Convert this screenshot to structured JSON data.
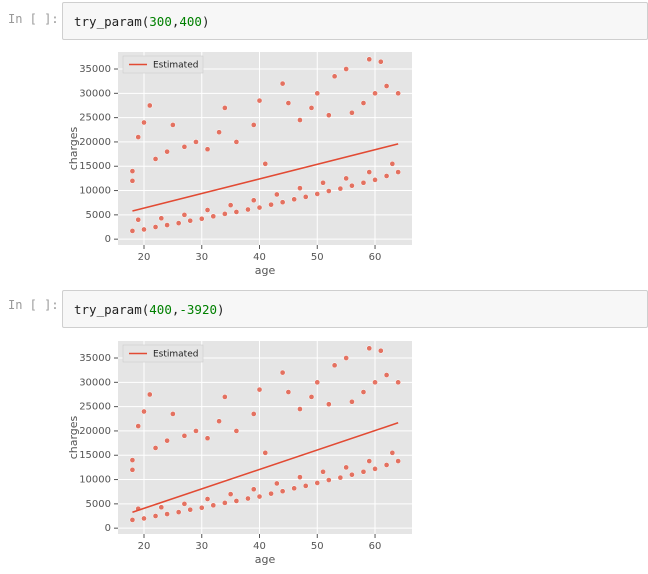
{
  "cells": [
    {
      "prompt": "In [ ]:",
      "code": [
        "try_param(",
        "300",
        ",",
        "400",
        ")"
      ]
    },
    {
      "prompt": "In [ ]:",
      "code": [
        "try_param(",
        "400",
        ",",
        "-3920",
        ")"
      ]
    }
  ],
  "chart_data": [
    {
      "type": "scatter",
      "xlabel": "age",
      "ylabel": "charges",
      "xlim": [
        15.5,
        66.4
      ],
      "ylim": [
        -1200,
        38500
      ],
      "xticks": [
        20,
        30,
        40,
        50,
        60
      ],
      "yticks": [
        0,
        5000,
        10000,
        15000,
        20000,
        25000,
        30000,
        35000
      ],
      "grid": true,
      "legend": "upper left",
      "points": {
        "color": "#e24a33",
        "x": [
          18,
          20,
          22,
          24,
          26,
          28,
          30,
          32,
          34,
          36,
          38,
          40,
          42,
          44,
          46,
          48,
          50,
          52,
          54,
          56,
          58,
          60,
          62,
          64,
          19,
          23,
          27,
          31,
          35,
          39,
          43,
          47,
          51,
          55,
          59,
          63,
          18,
          18,
          19,
          20,
          21,
          22,
          24,
          25,
          27,
          29,
          31,
          33,
          34,
          36,
          39,
          40,
          41,
          44,
          45,
          47,
          49,
          50,
          52,
          53,
          55,
          56,
          58,
          59,
          60,
          61,
          62,
          64
        ],
        "y": [
          1700,
          2000,
          2500,
          2900,
          3300,
          3800,
          4200,
          4700,
          5200,
          5600,
          6100,
          6500,
          7100,
          7600,
          8200,
          8700,
          9300,
          9900,
          10400,
          11000,
          11600,
          12200,
          13000,
          13800,
          4000,
          4300,
          5000,
          6000,
          7000,
          8000,
          9200,
          10500,
          11600,
          12500,
          13800,
          15500,
          12000,
          14000,
          21000,
          24000,
          27500,
          16500,
          18000,
          23500,
          19000,
          20000,
          18500,
          22000,
          27000,
          20000,
          23500,
          28500,
          15500,
          32000,
          28000,
          24500,
          27000,
          30000,
          25500,
          33500,
          35000,
          26000,
          28000,
          37000,
          30000,
          36500,
          31500,
          30000
        ]
      },
      "line": {
        "name": "Estimated",
        "color": "#e24a33",
        "x": [
          18,
          64
        ],
        "y": [
          5800,
          19600
        ]
      }
    },
    {
      "type": "scatter",
      "xlabel": "age",
      "ylabel": "charges",
      "xlim": [
        15.5,
        66.4
      ],
      "ylim": [
        -1200,
        38500
      ],
      "xticks": [
        20,
        30,
        40,
        50,
        60
      ],
      "yticks": [
        0,
        5000,
        10000,
        15000,
        20000,
        25000,
        30000,
        35000
      ],
      "grid": true,
      "legend": "upper left",
      "points": {
        "color": "#e24a33",
        "x": [
          18,
          20,
          22,
          24,
          26,
          28,
          30,
          32,
          34,
          36,
          38,
          40,
          42,
          44,
          46,
          48,
          50,
          52,
          54,
          56,
          58,
          60,
          62,
          64,
          19,
          23,
          27,
          31,
          35,
          39,
          43,
          47,
          51,
          55,
          59,
          63,
          18,
          18,
          19,
          20,
          21,
          22,
          24,
          25,
          27,
          29,
          31,
          33,
          34,
          36,
          39,
          40,
          41,
          44,
          45,
          47,
          49,
          50,
          52,
          53,
          55,
          56,
          58,
          59,
          60,
          61,
          62,
          64
        ],
        "y": [
          1700,
          2000,
          2500,
          2900,
          3300,
          3800,
          4200,
          4700,
          5200,
          5600,
          6100,
          6500,
          7100,
          7600,
          8200,
          8700,
          9300,
          9900,
          10400,
          11000,
          11600,
          12200,
          13000,
          13800,
          4000,
          4300,
          5000,
          6000,
          7000,
          8000,
          9200,
          10500,
          11600,
          12500,
          13800,
          15500,
          12000,
          14000,
          21000,
          24000,
          27500,
          16500,
          18000,
          23500,
          19000,
          20000,
          18500,
          22000,
          27000,
          20000,
          23500,
          28500,
          15500,
          32000,
          28000,
          24500,
          27000,
          30000,
          25500,
          33500,
          35000,
          26000,
          28000,
          37000,
          30000,
          36500,
          31500,
          30000
        ]
      },
      "line": {
        "name": "Estimated",
        "color": "#e24a33",
        "x": [
          18,
          64
        ],
        "y": [
          3280,
          21680
        ]
      }
    }
  ]
}
